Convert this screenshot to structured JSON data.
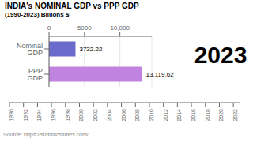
{
  "chart_data": [
    {
      "type": "bar",
      "title": "INDIA's NOMINAL GDP vs PPP GDP",
      "subtitle": "(1990-2023) Billions $",
      "orientation": "horizontal",
      "categories": [
        "PPP GDP",
        "Nominal GDP"
      ],
      "values": [
        13119.62,
        3732.22
      ],
      "value_labels": [
        "13,119.62",
        "3732.22"
      ],
      "data_labels": true,
      "colors": [
        "#c084e0",
        "#6b6bcc"
      ],
      "xlim": [
        0,
        14500
      ],
      "xticks": [
        0,
        5000,
        {
          "value": 10000,
          "label": "10,000"
        }
      ],
      "grid": true,
      "annotations": [
        "2023",
        "Source: https://statisticstimes.com/"
      ]
    },
    {
      "type": "timeline",
      "xlim": [
        1990,
        2023
      ],
      "xticks": [
        1990,
        1992,
        1994,
        1996,
        1998,
        2000,
        2002,
        2004,
        2006,
        2008,
        2010,
        2012,
        2014,
        2016,
        2018,
        2020,
        2022
      ]
    }
  ]
}
